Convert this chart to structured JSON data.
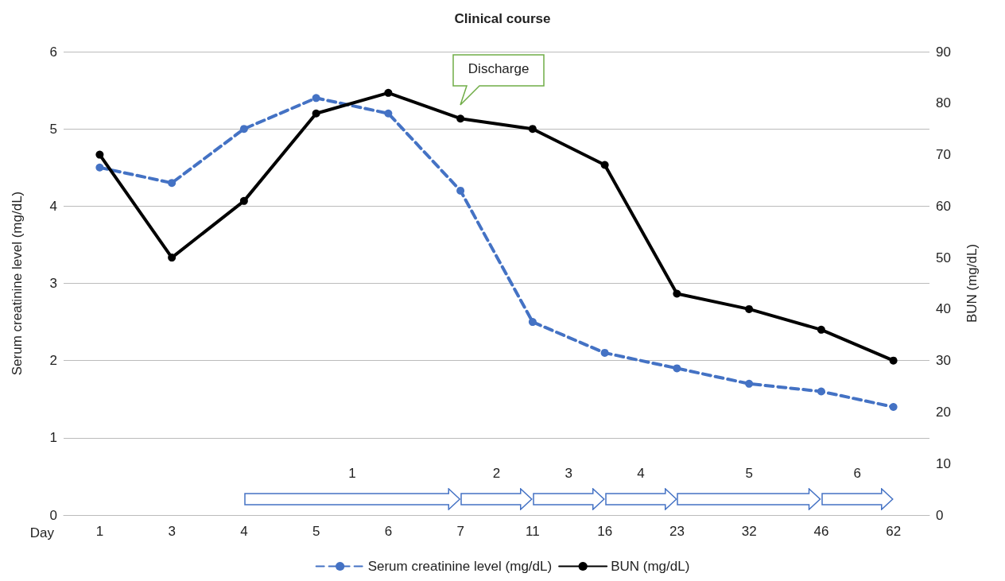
{
  "chart_data": {
    "type": "line",
    "title": "Clinical course",
    "xlabel": "Day",
    "ylabel": "Serum creatinine level (mg/dL)",
    "y2label": "BUN (mg/dL)",
    "categories": [
      "1",
      "3",
      "4",
      "5",
      "6",
      "7",
      "11",
      "16",
      "23",
      "32",
      "46",
      "62"
    ],
    "series": [
      {
        "name": "Serum creatinine level (mg/dL)",
        "color": "#4472c4",
        "line_style": "dashed",
        "values": [
          4.5,
          4.3,
          5.0,
          5.4,
          5.2,
          4.2,
          2.5,
          2.1,
          1.9,
          1.7,
          1.6,
          1.4
        ]
      },
      {
        "name": "BUN (mg/dL)",
        "color": "#000000",
        "line_style": "solid",
        "axis": "y2",
        "values": [
          70,
          50,
          61,
          78,
          82,
          77,
          75,
          68,
          43,
          40,
          36,
          30
        ]
      }
    ],
    "ylim": [
      0,
      6
    ],
    "yticks": [
      0,
      1,
      2,
      3,
      4,
      5,
      6
    ],
    "y2lim": [
      0,
      90
    ],
    "y2ticks": [
      0,
      10,
      20,
      30,
      40,
      50,
      60,
      70,
      80,
      90
    ],
    "grid": "y",
    "legend": "bottom",
    "marker": "circle",
    "annotations": [
      "Discharge",
      "1",
      "2",
      "3",
      "4",
      "5",
      "6"
    ]
  }
}
